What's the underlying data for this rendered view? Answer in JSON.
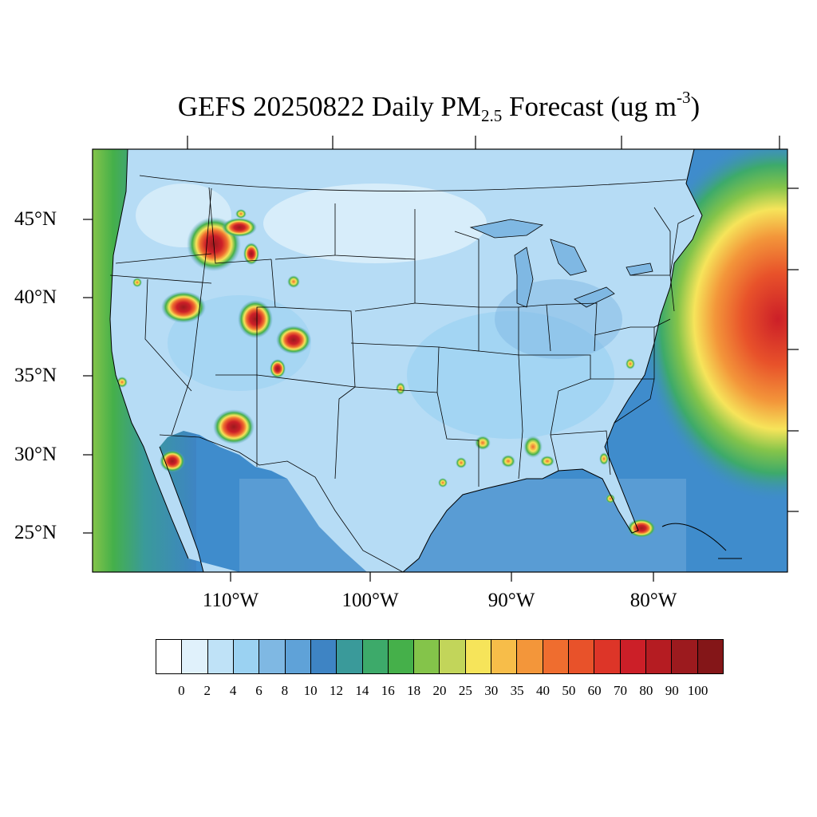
{
  "title": {
    "prefix": "GEFS 20250822 Daily PM",
    "subscript": "2.5",
    "middle": " Forecast (ug m",
    "superscript": "-3",
    "suffix": ")"
  },
  "map": {
    "projection": "lambert-conformal",
    "region": "Continental United States",
    "lat_labels": [
      "45°N",
      "40°N",
      "35°N",
      "30°N",
      "25°N"
    ],
    "lon_labels": [
      "110°W",
      "100°W",
      "90°W",
      "80°W"
    ],
    "ocean_background_color": "#3f8ccc",
    "land_background_color": "#b6dcf5",
    "hotspots": [
      {
        "name": "Idaho / Oregon fires",
        "level": "90-100"
      },
      {
        "name": "Montana",
        "level": "60-80"
      },
      {
        "name": "Nevada",
        "level": "80-100"
      },
      {
        "name": "Utah",
        "level": "80-100"
      },
      {
        "name": "Colorado",
        "level": "80-100"
      },
      {
        "name": "Arizona",
        "level": "70-90"
      },
      {
        "name": "Baja California",
        "level": "80-100"
      },
      {
        "name": "Southeast US scattered",
        "level": "30-60"
      },
      {
        "name": "South Florida",
        "level": "60-80"
      },
      {
        "name": "Western Atlantic plume",
        "level": "70-90"
      }
    ]
  },
  "colorbar": {
    "levels": [
      {
        "label": "0",
        "color": "#ffffff"
      },
      {
        "label": "2",
        "color": "#e0f1fb"
      },
      {
        "label": "4",
        "color": "#bfe2f7"
      },
      {
        "label": "6",
        "color": "#9bd2f2"
      },
      {
        "label": "8",
        "color": "#7fb8e3"
      },
      {
        "label": "10",
        "color": "#5fa2d8"
      },
      {
        "label": "12",
        "color": "#3e84c4"
      },
      {
        "label": "14",
        "color": "#3a9a9a"
      },
      {
        "label": "16",
        "color": "#3daa6a"
      },
      {
        "label": "18",
        "color": "#45b04a"
      },
      {
        "label": "20",
        "color": "#84c44a"
      },
      {
        "label": "25",
        "color": "#c2d55a"
      },
      {
        "label": "30",
        "color": "#f6e45a"
      },
      {
        "label": "35",
        "color": "#f7bd49"
      },
      {
        "label": "40",
        "color": "#f3963a"
      },
      {
        "label": "50",
        "color": "#ef6d2f"
      },
      {
        "label": "60",
        "color": "#e8522a"
      },
      {
        "label": "70",
        "color": "#dd3528"
      },
      {
        "label": "80",
        "color": "#cc1f28"
      },
      {
        "label": "90",
        "color": "#b51c22"
      },
      {
        "label": "100",
        "color": "#9c1a1e"
      },
      {
        "label": "",
        "color": "#841618"
      }
    ]
  }
}
